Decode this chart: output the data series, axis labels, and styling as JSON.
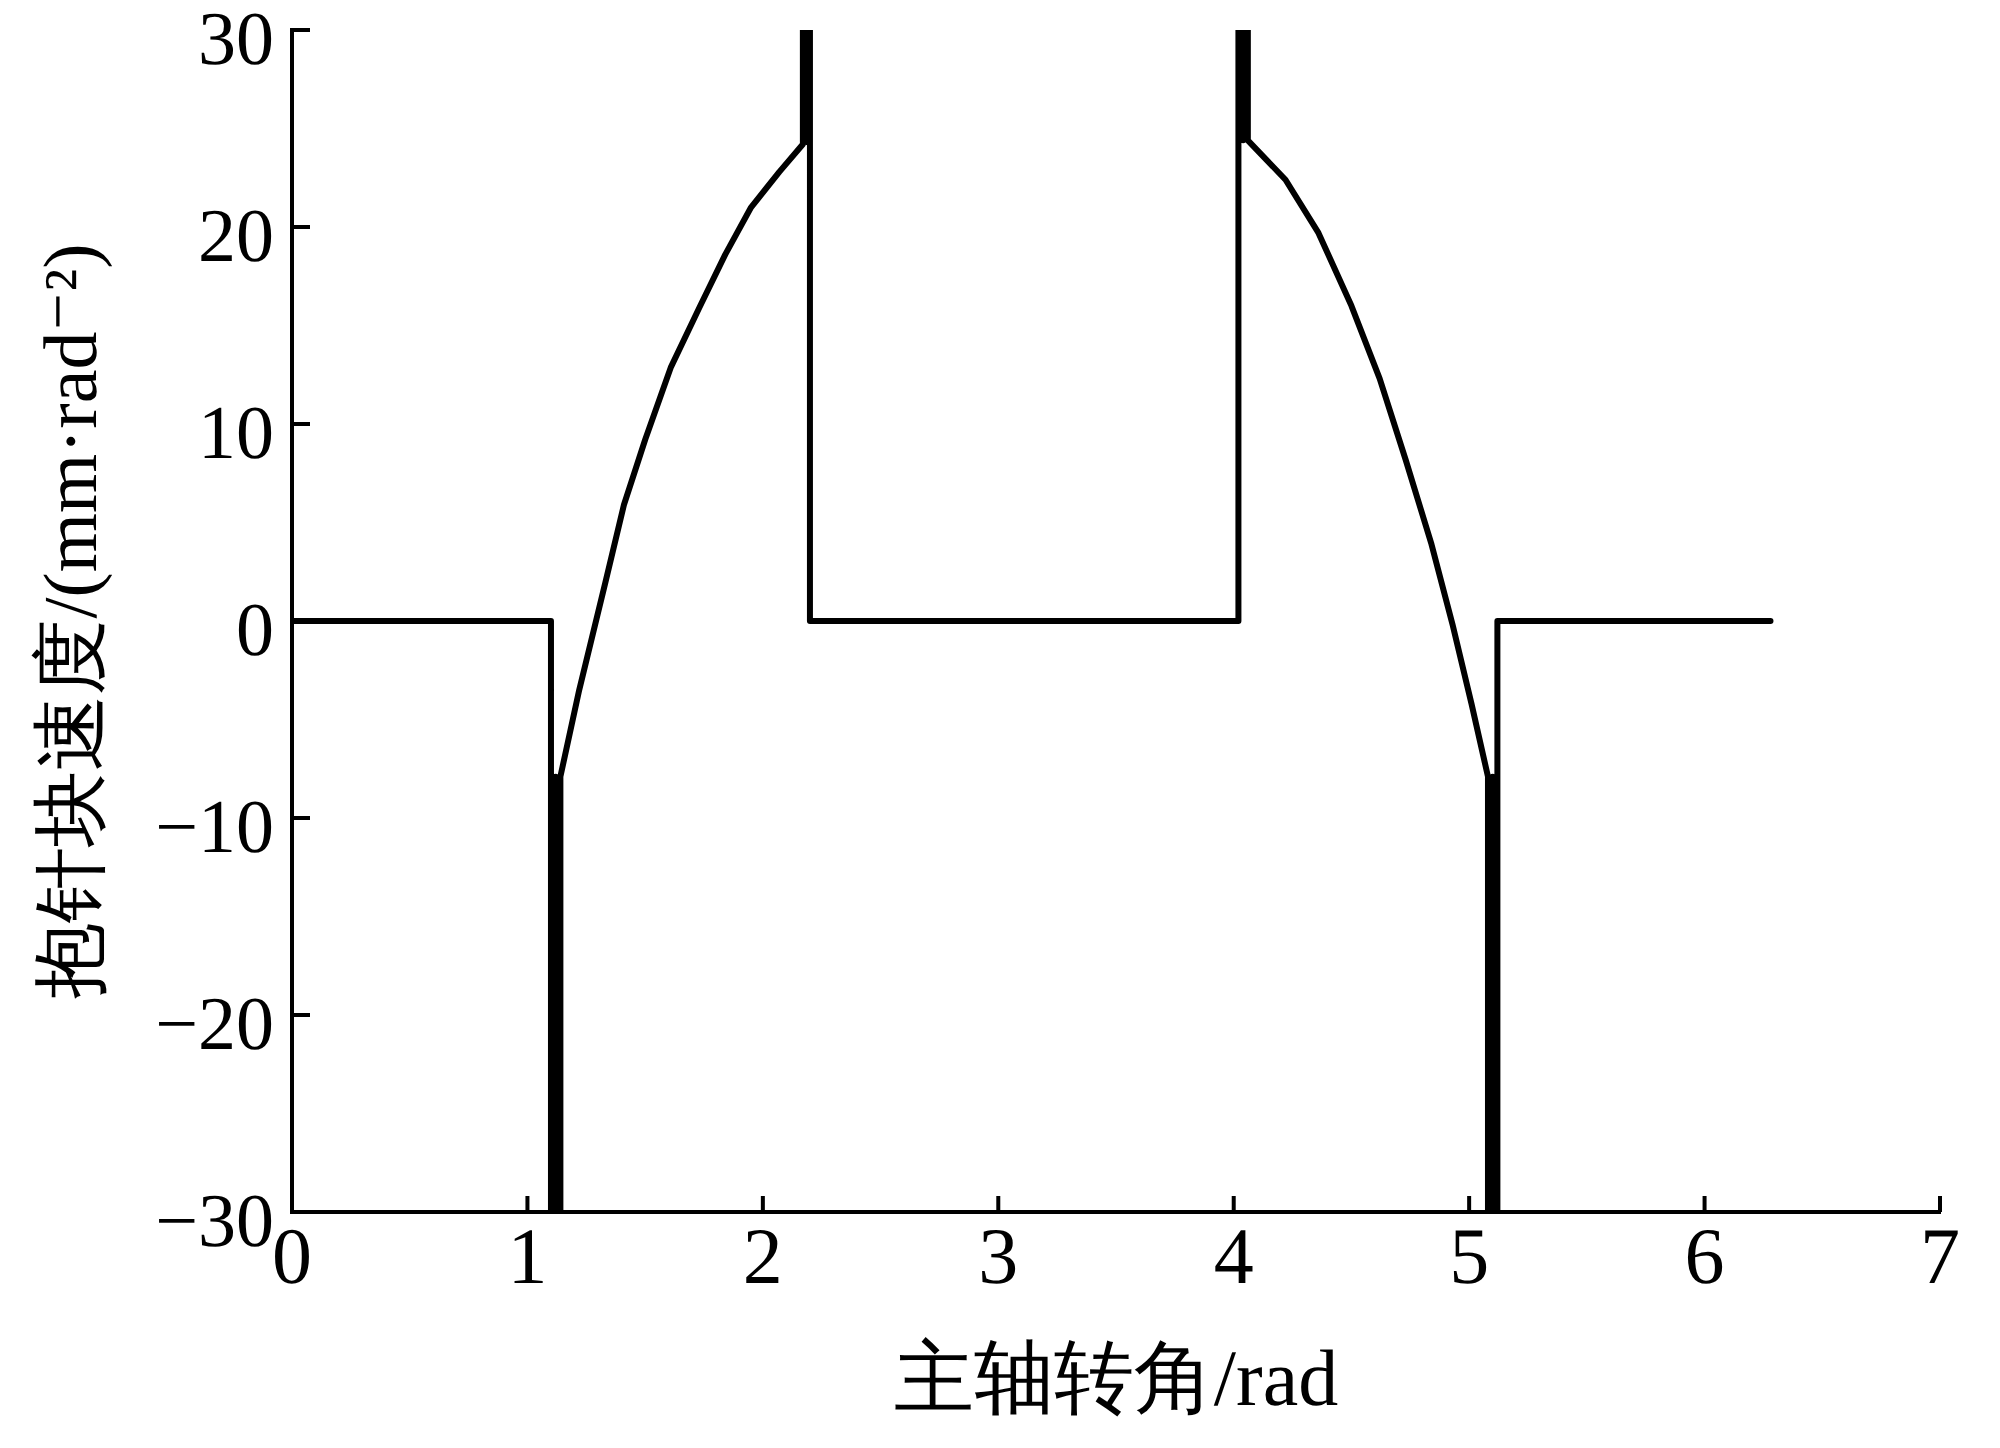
{
  "chart_data": {
    "type": "line",
    "xlabel": "主轴转角/rad",
    "ylabel": "抱针块速度/(mm·rad⁻²)",
    "x": [
      0,
      1.1,
      1.1,
      1.12,
      1.12,
      1.12,
      1.14,
      1.14,
      1.22,
      1.33,
      1.41,
      1.5,
      1.61,
      1.73,
      1.84,
      1.95,
      2.07,
      2.17,
      2.17,
      2.19,
      2.19,
      2.19,
      2.2,
      2.2,
      4.02,
      4.02,
      4.04,
      4.04,
      4.04,
      4.06,
      4.06,
      4.22,
      4.36,
      4.5,
      4.62,
      4.73,
      4.84,
      4.93,
      5.01,
      5.08,
      5.08,
      5.1,
      5.1,
      5.1,
      5.12,
      5.12,
      6.28
    ],
    "values": [
      0,
      0,
      -30,
      -30,
      -7.9,
      -30,
      -30,
      -7.9,
      -3.5,
      1.9,
      5.9,
      9.2,
      12.9,
      15.9,
      18.6,
      21,
      22.8,
      24.2,
      30,
      30,
      24.3,
      30,
      30,
      0,
      0,
      30,
      30,
      24.4,
      30,
      30,
      24.4,
      22.4,
      19.7,
      16,
      12.3,
      8.2,
      3.9,
      -0.2,
      -4.2,
      -7.9,
      -30,
      -30,
      -7.9,
      -30,
      -30,
      0,
      0
    ],
    "color": "#000000",
    "xlim": [
      0,
      7
    ],
    "xticks": [
      0,
      1,
      2,
      3,
      4,
      5,
      6,
      7
    ],
    "ylim": [
      -30,
      30
    ],
    "yticks": [
      {
        "value": -30,
        "label": "−30"
      },
      {
        "value": -20,
        "label": "−20"
      },
      {
        "value": -10,
        "label": "−10"
      },
      0,
      10,
      20,
      30
    ],
    "grid": false,
    "marker": "none",
    "line_style": "solid"
  }
}
